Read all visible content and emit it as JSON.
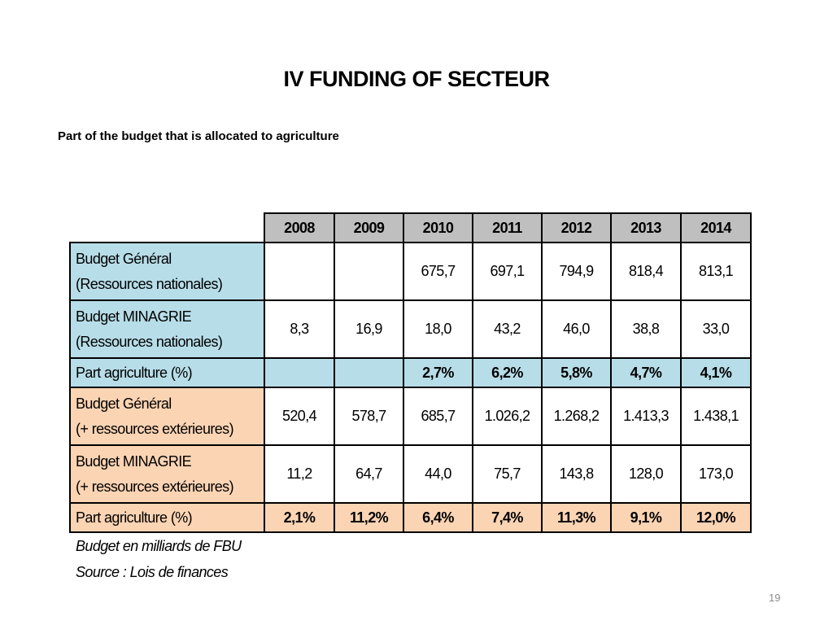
{
  "title": "IV FUNDING OF SECTEUR",
  "subtitle": "Part of the budget that is allocated to agriculture",
  "table": {
    "columns": [
      "2008",
      "2009",
      "2010",
      "2011",
      "2012",
      "2013",
      "2014"
    ],
    "rows": [
      {
        "group": "blue",
        "kind": "tall",
        "label1": "Budget Général",
        "label2": "(Ressources nationales)",
        "values": [
          "",
          "",
          "675,7",
          "697,1",
          "794,9",
          "818,4",
          "813,1"
        ]
      },
      {
        "group": "blue",
        "kind": "tall",
        "label1": "Budget MINAGRIE",
        "label2": "(Ressources nationales)",
        "values": [
          "8,3",
          "16,9",
          "18,0",
          "43,2",
          "46,0",
          "38,8",
          "33,0"
        ]
      },
      {
        "group": "blue",
        "kind": "pct",
        "label1": "Part agriculture (%)",
        "values": [
          "",
          "",
          "2,7%",
          "6,2%",
          "5,8%",
          "4,7%",
          "4,1%"
        ]
      },
      {
        "group": "peach",
        "kind": "tall",
        "label1": "Budget Général",
        "label2": "(+ ressources extérieures)",
        "values": [
          "520,4",
          "578,7",
          "685,7",
          "1.026,2",
          "1.268,2",
          "1.413,3",
          "1.438,1"
        ]
      },
      {
        "group": "peach",
        "kind": "tall",
        "label1": "Budget MINAGRIE",
        "label2": "(+ ressources extérieures)",
        "values": [
          "11,2",
          "64,7",
          "44,0",
          "75,7",
          "143,8",
          "128,0",
          "173,0"
        ]
      },
      {
        "group": "peach",
        "kind": "pct",
        "label1": "Part agriculture (%)",
        "values": [
          "2,1%",
          "11,2%",
          "6,4%",
          "7,4%",
          "11,3%",
          "9,1%",
          "12,0%"
        ]
      }
    ]
  },
  "notes": {
    "unit": "Budget en milliards de FBU",
    "source": "Source : Lois de finances"
  },
  "page_number": "19",
  "colors": {
    "header": "#bfbfbf",
    "national": "#b7dde8",
    "external": "#fbd4b4"
  }
}
